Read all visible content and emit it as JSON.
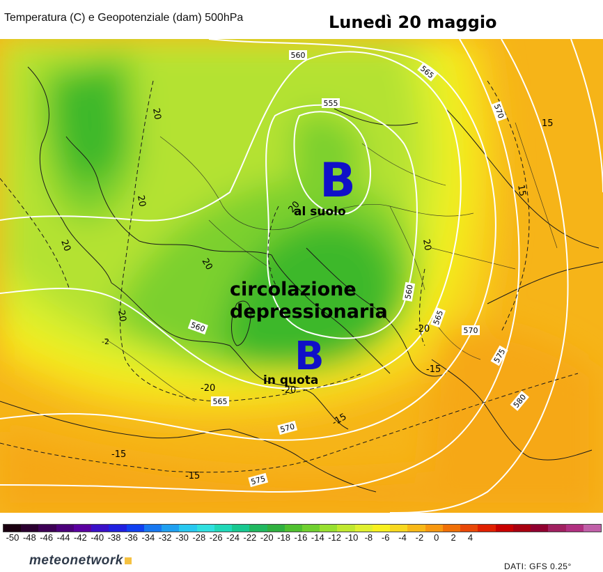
{
  "header": {
    "subtitle": "Temperatura (C) e Geopotenziale (dam) 500hPa",
    "title": "Lunedì 20 maggio"
  },
  "annotations": {
    "b_upper": "B",
    "b_upper_label": "al suolo",
    "circulation_line1": "circolazione",
    "circulation_line2": "depressionaria",
    "b_lower": "B",
    "b_lower_label": "in quota"
  },
  "contour_labels": {
    "g555": "555",
    "g560": "560",
    "g565": "565",
    "g570": "570",
    "g575": "575",
    "g580": "580",
    "t20": "-20",
    "t15": "-15",
    "t20_pos": "20",
    "t15_pos": "15",
    "t_small": "-2"
  },
  "legend": {
    "ticks": [
      "-50",
      "-48",
      "-46",
      "-44",
      "-42",
      "-40",
      "-38",
      "-36",
      "-34",
      "-32",
      "-30",
      "-28",
      "-26",
      "-24",
      "-22",
      "-20",
      "-18",
      "-16",
      "-14",
      "-12",
      "-10",
      "-8",
      "-6",
      "-4",
      "-2",
      "0",
      "2",
      "4"
    ],
    "colors": [
      "#1a0010",
      "#2b0030",
      "#3d0055",
      "#4b007a",
      "#5a00a0",
      "#3a10c8",
      "#2020e0",
      "#1040f0",
      "#1878f0",
      "#20a0f0",
      "#28c8f0",
      "#30e0e0",
      "#20d8b8",
      "#18c890",
      "#20b860",
      "#30b040",
      "#50c030",
      "#70d030",
      "#98e030",
      "#c0e830",
      "#e0f030",
      "#f8f020",
      "#f8d820",
      "#f8b818",
      "#f89810",
      "#f07008",
      "#e84808",
      "#e02000",
      "#c80000",
      "#a80010",
      "#900030",
      "#a02060",
      "#b03080",
      "#c060a8"
    ]
  },
  "branding": {
    "logo": "meteonetwork",
    "source": "DATI: GFS 0.25°"
  },
  "colors": {
    "deep_green": "#3cb82a",
    "mid_green": "#7cd02e",
    "light_green": "#b4e230",
    "yellow_green": "#d8ee2e",
    "yellow": "#f4ee1e",
    "yellow_orange": "#f8d21c",
    "orange": "#f6b418",
    "contour_white": "#ffffff"
  }
}
